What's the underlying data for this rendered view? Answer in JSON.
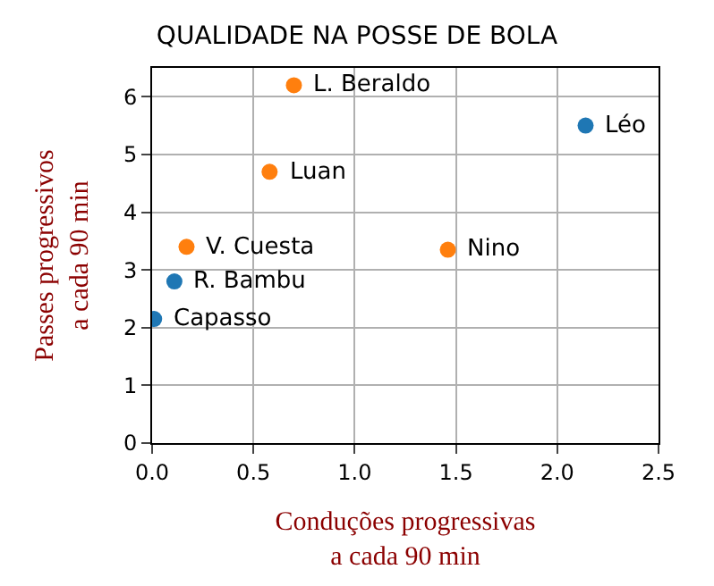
{
  "chart_data": {
    "type": "scatter",
    "title": "QUALIDADE NA POSSE DE BOLA",
    "xlabel": "Conduções progressivas\na cada 90 min",
    "ylabel": "Passes progressivos\na cada 90 min",
    "series": [
      {
        "color": "#1f77b4",
        "x": [
          0.01,
          0.11,
          2.14
        ],
        "values": [
          2.15,
          2.8,
          5.5
        ]
      },
      {
        "color": "#ff7f0e",
        "x": [
          0.17,
          0.58,
          0.7,
          1.46
        ],
        "values": [
          3.4,
          4.7,
          6.2,
          3.35
        ]
      }
    ],
    "annotations": [
      {
        "text": "Capasso",
        "x": 0.01,
        "y": 2.15
      },
      {
        "text": "R. Bambu",
        "x": 0.11,
        "y": 2.8
      },
      {
        "text": "Léo",
        "x": 2.14,
        "y": 5.5
      },
      {
        "text": "V. Cuesta",
        "x": 0.17,
        "y": 3.4
      },
      {
        "text": "Luan",
        "x": 0.58,
        "y": 4.7
      },
      {
        "text": "L. Beraldo",
        "x": 0.7,
        "y": 6.2
      },
      {
        "text": "Nino",
        "x": 1.46,
        "y": 3.35
      }
    ],
    "xlim": [
      0,
      2.5
    ],
    "xticks": [
      {
        "value": 0,
        "label": "0.0"
      },
      0.5,
      {
        "value": 1,
        "label": "1.0"
      },
      1.5,
      {
        "value": 2,
        "label": "2.0"
      },
      2.5
    ],
    "ylim": [
      0,
      6.5
    ],
    "yticks": [
      0,
      1,
      2,
      3,
      4,
      5,
      6
    ],
    "grid": true,
    "legend": false,
    "marker": "circle"
  }
}
